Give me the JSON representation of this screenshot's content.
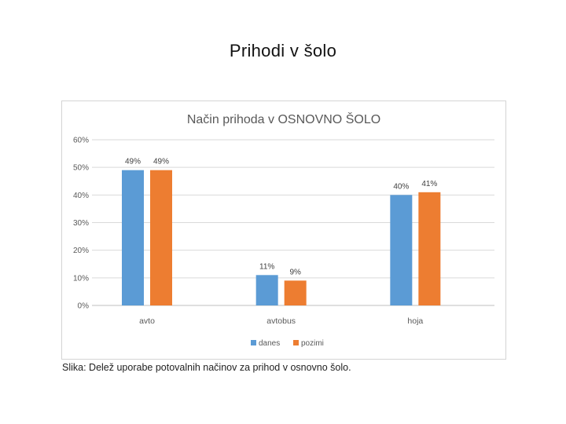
{
  "page": {
    "title": "Prihodi v šolo",
    "caption": "Slika: Delež uporabe potovalnih načinov za prihod v osnovno šolo."
  },
  "chart_data": {
    "type": "bar",
    "title": "Način prihoda v OSNOVNO ŠOLO",
    "categories": [
      "avto",
      "avtobus",
      "hoja"
    ],
    "series": [
      {
        "name": "danes",
        "values": [
          49,
          11,
          40
        ],
        "color": "#5b9bd5"
      },
      {
        "name": "pozimi",
        "values": [
          49,
          9,
          41
        ],
        "color": "#ed7d31"
      }
    ],
    "data_labels": [
      [
        "49%",
        "11%",
        "40%"
      ],
      [
        "49%",
        "9%",
        "41%"
      ]
    ],
    "y_ticks": [
      "0%",
      "10%",
      "20%",
      "30%",
      "40%",
      "50%",
      "60%"
    ],
    "ylim": [
      0,
      60
    ],
    "y_unit": "%",
    "grid": true,
    "legend_position": "bottom"
  }
}
